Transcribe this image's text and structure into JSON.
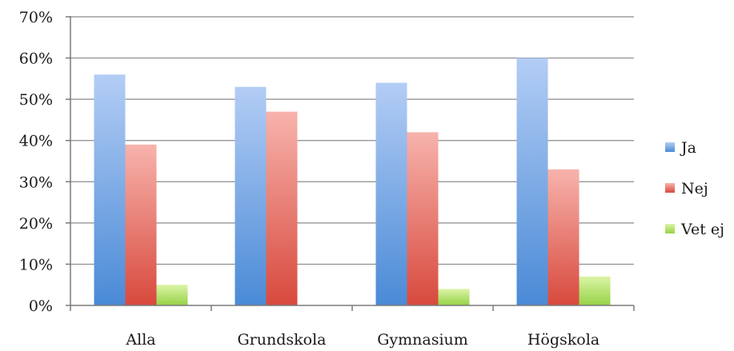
{
  "chart_data": {
    "type": "bar",
    "categories": [
      "Alla",
      "Grundskola",
      "Gymnasium",
      "Högskola"
    ],
    "series": [
      {
        "name": "Ja",
        "values": [
          56,
          53,
          54,
          60
        ],
        "color_top": "#b3cdf5",
        "color_bottom": "#4a8ad6"
      },
      {
        "name": "Nej",
        "values": [
          39,
          47,
          42,
          33
        ],
        "color_top": "#f7b3ac",
        "color_bottom": "#d8493d"
      },
      {
        "name": "Vet ej",
        "values": [
          5,
          0,
          4,
          7
        ],
        "color_top": "#dbf4a6",
        "color_bottom": "#96d246"
      }
    ],
    "y_ticks": [
      "0%",
      "10%",
      "20%",
      "30%",
      "40%",
      "50%",
      "60%",
      "70%"
    ],
    "ylim": [
      0,
      70
    ],
    "y_unit": "%",
    "grid": true,
    "legend_position": "right",
    "title": "",
    "xlabel": "",
    "ylabel": ""
  }
}
